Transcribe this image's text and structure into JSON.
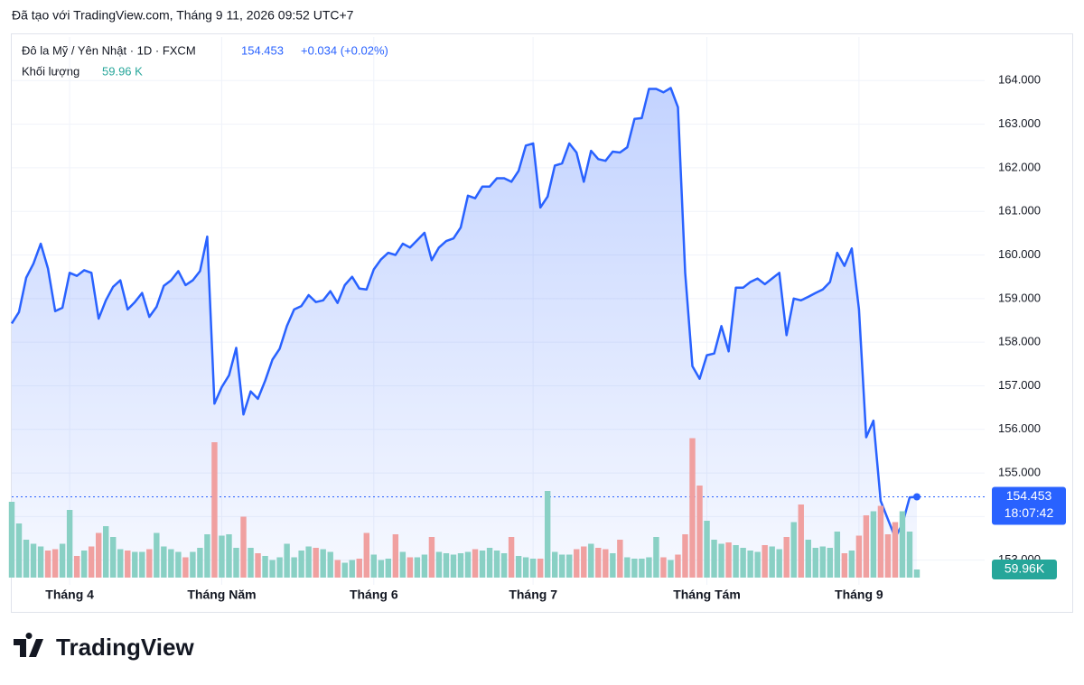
{
  "chart_data": {
    "type": "line",
    "credit": "Đã tạo với TradingView.com, Tháng 9 11, 2026 09:52 UTC+7",
    "title": "Đô la Mỹ / Yên Nhật · 1D · FXCM",
    "change_label": "+0.034 (+0.02%)",
    "volume_title": "Khối lượng",
    "volume_legend_label": "59.96 K",
    "volume_badge_label": "59.96K",
    "countdown": "18:07:42",
    "brand": "TradingView",
    "series": [
      {
        "name": "Đô la Mỹ / Yên Nhật",
        "color": "#2962ff",
        "values": [
          158.43,
          158.69,
          159.48,
          159.8,
          160.26,
          159.69,
          158.71,
          158.79,
          159.59,
          159.52,
          159.65,
          159.59,
          158.54,
          158.96,
          159.27,
          159.42,
          158.75,
          158.92,
          159.13,
          158.58,
          158.81,
          159.29,
          159.42,
          159.63,
          159.31,
          159.42,
          159.63,
          160.42,
          156.59,
          156.97,
          157.24,
          157.87,
          156.34,
          156.87,
          156.7,
          157.12,
          157.6,
          157.85,
          158.37,
          158.75,
          158.83,
          159.08,
          158.92,
          158.96,
          159.17,
          158.9,
          159.31,
          159.5,
          159.23,
          159.21,
          159.67,
          159.9,
          160.05,
          160.0,
          160.26,
          160.17,
          160.34,
          160.51,
          159.88,
          160.17,
          160.32,
          160.38,
          160.63,
          161.36,
          161.3,
          161.57,
          161.57,
          161.76,
          161.76,
          161.68,
          161.93,
          162.51,
          162.56,
          161.09,
          161.34,
          162.05,
          162.1,
          162.56,
          162.35,
          161.68,
          162.39,
          162.2,
          162.16,
          162.37,
          162.35,
          162.47,
          163.12,
          163.14,
          163.81,
          163.81,
          163.73,
          163.83,
          163.39,
          159.59,
          157.45,
          157.16,
          157.7,
          157.74,
          158.37,
          157.79,
          159.25,
          159.25,
          159.38,
          159.46,
          159.33,
          159.46,
          159.59,
          158.16,
          159.0,
          158.96,
          159.04,
          159.13,
          159.21,
          159.38,
          160.05,
          159.75,
          160.15,
          158.75,
          155.82,
          156.2,
          154.36,
          153.94,
          153.52,
          153.83,
          154.44,
          154.453
        ]
      },
      {
        "name": "Khối lượng",
        "type": "volume",
        "up_color": "#89d0c4",
        "down_color": "#f0a0a0",
        "badge_color": "#26a69a",
        "values": [
          560,
          400,
          280,
          250,
          230,
          200,
          210,
          250,
          500,
          160,
          200,
          230,
          330,
          380,
          300,
          210,
          200,
          190,
          190,
          210,
          330,
          230,
          210,
          190,
          150,
          190,
          220,
          320,
          1000,
          310,
          320,
          220,
          450,
          220,
          180,
          160,
          130,
          150,
          250,
          150,
          200,
          230,
          220,
          210,
          190,
          130,
          110,
          130,
          140,
          330,
          170,
          130,
          140,
          320,
          190,
          150,
          150,
          170,
          300,
          190,
          180,
          170,
          180,
          190,
          210,
          200,
          220,
          200,
          180,
          300,
          160,
          150,
          140,
          140,
          640,
          190,
          170,
          170,
          210,
          230,
          250,
          220,
          210,
          180,
          280,
          150,
          140,
          140,
          150,
          300,
          150,
          130,
          170,
          320,
          1030,
          680,
          420,
          280,
          250,
          260,
          240,
          220,
          200,
          190,
          240,
          230,
          210,
          300,
          410,
          540,
          280,
          220,
          230,
          220,
          340,
          180,
          200,
          310,
          460,
          490,
          530,
          320,
          410,
          490,
          340,
          59.96
        ],
        "ylim": [
          0,
          1000
        ]
      }
    ],
    "ylim": [
      152.6,
      165.0
    ],
    "yticks": [
      {
        "value": 153,
        "label": "153.000"
      },
      {
        "value": 154,
        "label": "154.000"
      },
      {
        "value": 155,
        "label": "155.000"
      },
      {
        "value": 156,
        "label": "156.000"
      },
      {
        "value": 157,
        "label": "157.000"
      },
      {
        "value": 158,
        "label": "158.000"
      },
      {
        "value": 159,
        "label": "159.000"
      },
      {
        "value": 160,
        "label": "160.000"
      },
      {
        "value": 161,
        "label": "161.000"
      },
      {
        "value": 162,
        "label": "162.000"
      },
      {
        "value": 163,
        "label": "163.000"
      },
      {
        "value": 164,
        "label": "164.000"
      }
    ],
    "xlim": [
      0,
      125
    ],
    "xticks": [
      {
        "value": 8,
        "label": "Tháng 4"
      },
      {
        "value": 29,
        "label": "Tháng Năm"
      },
      {
        "value": 50,
        "label": "Tháng 6"
      },
      {
        "value": 72,
        "label": "Tháng 7"
      },
      {
        "value": 96,
        "label": "Tháng Tám"
      },
      {
        "value": 117,
        "label": "Tháng 9"
      }
    ],
    "grid": true
  }
}
